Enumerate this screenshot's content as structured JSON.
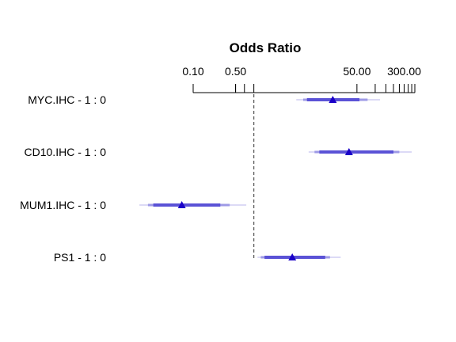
{
  "chart_data": {
    "type": "forest",
    "title": "Odds Ratio",
    "x_scale": "log",
    "xlim": [
      0.1,
      450
    ],
    "reference_line": 1,
    "ticks": [
      0.1,
      0.5,
      50,
      300
    ],
    "tick_labels": [
      "0.10",
      "0.50",
      "50.00",
      "300.00"
    ],
    "minor_ticks": [
      0.5,
      0.7,
      1,
      100,
      150,
      200,
      250,
      300,
      350,
      400,
      450
    ],
    "rows": [
      {
        "label": "MYC.IHC - 1 : 0",
        "or": 20,
        "ci_inner": [
          7.5,
          55
        ],
        "ci_mid": [
          6.5,
          75
        ],
        "ci_outer": [
          5,
          120
        ]
      },
      {
        "label": "CD10.IHC - 1 : 0",
        "or": 37,
        "ci_inner": [
          12,
          200
        ],
        "ci_mid": [
          10,
          250
        ],
        "ci_outer": [
          8,
          400
        ]
      },
      {
        "label": "MUM1.IHC - 1 : 0",
        "or": 0.065,
        "ci_inner": [
          0.022,
          0.28
        ],
        "ci_mid": [
          0.018,
          0.4
        ],
        "ci_outer": [
          0.013,
          0.75
        ]
      },
      {
        "label": "PS1 - 1 : 0",
        "or": 4.3,
        "ci_inner": [
          1.5,
          15
        ],
        "ci_mid": [
          1.3,
          18
        ],
        "ci_outer": [
          1.15,
          27
        ]
      }
    ],
    "colors": {
      "thick": "#5a52d6",
      "mid": "#9e9ae6",
      "thin": "#dcdaf6",
      "point": "#1a00c8",
      "ref": "#555555"
    }
  }
}
